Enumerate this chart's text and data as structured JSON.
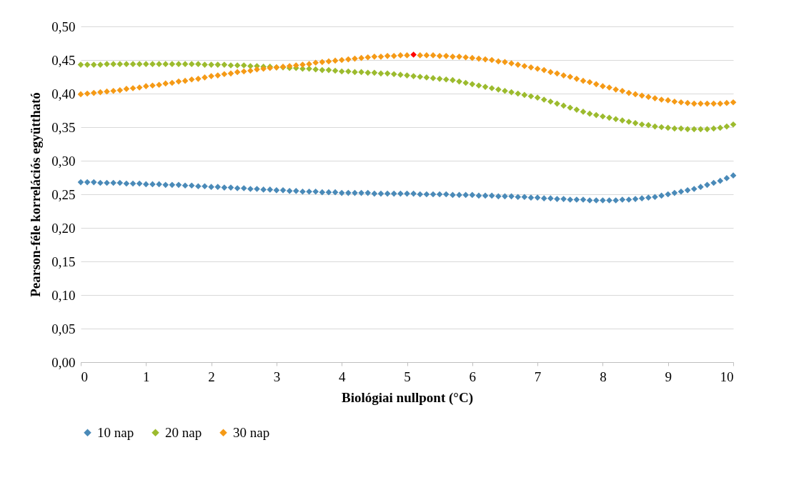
{
  "chart_data": {
    "type": "scatter",
    "xlabel": "Biológiai nullpont (°C)",
    "ylabel": "Pearson-féle korrelációs együttható",
    "marker": "diamond",
    "grid": "y",
    "legend": "bottom",
    "x": [
      0,
      0.1,
      0.2,
      0.3,
      0.4,
      0.5,
      0.6,
      0.7,
      0.8,
      0.9,
      1,
      1.1,
      1.2,
      1.3,
      1.4,
      1.5,
      1.6,
      1.7,
      1.8,
      1.9,
      2,
      2.1,
      2.2,
      2.3,
      2.4,
      2.5,
      2.6,
      2.7,
      2.8,
      2.9,
      3,
      3.1,
      3.2,
      3.3,
      3.4,
      3.5,
      3.6,
      3.7,
      3.8,
      3.9,
      4,
      4.1,
      4.2,
      4.3,
      4.4,
      4.5,
      4.6,
      4.7,
      4.8,
      4.9,
      5,
      5.1,
      5.2,
      5.3,
      5.4,
      5.5,
      5.6,
      5.7,
      5.8,
      5.9,
      6,
      6.1,
      6.2,
      6.3,
      6.4,
      6.5,
      6.6,
      6.7,
      6.8,
      6.9,
      7,
      7.1,
      7.2,
      7.3,
      7.4,
      7.5,
      7.6,
      7.7,
      7.8,
      7.9,
      8,
      8.1,
      8.2,
      8.3,
      8.4,
      8.5,
      8.6,
      8.7,
      8.8,
      8.9,
      9,
      9.1,
      9.2,
      9.3,
      9.4,
      9.5,
      9.6,
      9.7,
      9.8,
      9.9,
      10
    ],
    "xlim": [
      0,
      10
    ],
    "xticks": [
      0,
      1,
      2,
      3,
      4,
      5,
      6,
      7,
      8,
      9,
      10
    ],
    "ylim": [
      0,
      0.5
    ],
    "yticks": [
      {
        "value": 0,
        "label": "0,00"
      },
      {
        "value": 0.05,
        "label": "0,05"
      },
      {
        "value": 0.1,
        "label": "0,10"
      },
      {
        "value": 0.15,
        "label": "0,15"
      },
      {
        "value": 0.2,
        "label": "0,20"
      },
      {
        "value": 0.25,
        "label": "0,25"
      },
      {
        "value": 0.3,
        "label": "0,30"
      },
      {
        "value": 0.35,
        "label": "0,35"
      },
      {
        "value": 0.4,
        "label": "0,40"
      },
      {
        "value": 0.45,
        "label": "0,45"
      },
      {
        "value": 0.5,
        "label": "0,50"
      }
    ],
    "series": [
      {
        "name": "10 nap",
        "color": "#4a8ab8",
        "values": [
          0.268,
          0.268,
          0.268,
          0.267,
          0.267,
          0.267,
          0.267,
          0.266,
          0.266,
          0.266,
          0.265,
          0.265,
          0.265,
          0.264,
          0.264,
          0.264,
          0.263,
          0.263,
          0.262,
          0.262,
          0.261,
          0.261,
          0.26,
          0.26,
          0.259,
          0.259,
          0.258,
          0.258,
          0.257,
          0.257,
          0.256,
          0.256,
          0.255,
          0.255,
          0.254,
          0.254,
          0.254,
          0.253,
          0.253,
          0.253,
          0.252,
          0.252,
          0.252,
          0.252,
          0.252,
          0.251,
          0.251,
          0.251,
          0.251,
          0.251,
          0.251,
          0.251,
          0.25,
          0.25,
          0.25,
          0.25,
          0.25,
          0.249,
          0.249,
          0.249,
          0.249,
          0.248,
          0.248,
          0.248,
          0.247,
          0.247,
          0.247,
          0.246,
          0.246,
          0.245,
          0.245,
          0.244,
          0.244,
          0.243,
          0.243,
          0.242,
          0.242,
          0.242,
          0.241,
          0.241,
          0.241,
          0.241,
          0.241,
          0.242,
          0.242,
          0.243,
          0.244,
          0.245,
          0.246,
          0.248,
          0.25,
          0.252,
          0.254,
          0.256,
          0.258,
          0.261,
          0.264,
          0.267,
          0.27,
          0.274,
          0.278
        ]
      },
      {
        "name": "20 nap",
        "color": "#9cbb2e",
        "values": [
          0.443,
          0.443,
          0.443,
          0.443,
          0.444,
          0.444,
          0.444,
          0.444,
          0.444,
          0.444,
          0.444,
          0.444,
          0.444,
          0.444,
          0.444,
          0.444,
          0.444,
          0.444,
          0.444,
          0.443,
          0.443,
          0.443,
          0.443,
          0.442,
          0.442,
          0.442,
          0.441,
          0.441,
          0.44,
          0.44,
          0.439,
          0.439,
          0.438,
          0.438,
          0.437,
          0.437,
          0.436,
          0.435,
          0.435,
          0.434,
          0.433,
          0.433,
          0.432,
          0.432,
          0.431,
          0.431,
          0.43,
          0.43,
          0.429,
          0.428,
          0.427,
          0.426,
          0.425,
          0.424,
          0.423,
          0.422,
          0.421,
          0.42,
          0.418,
          0.416,
          0.414,
          0.412,
          0.41,
          0.408,
          0.406,
          0.404,
          0.402,
          0.4,
          0.398,
          0.396,
          0.394,
          0.391,
          0.388,
          0.385,
          0.382,
          0.379,
          0.376,
          0.373,
          0.37,
          0.368,
          0.366,
          0.364,
          0.362,
          0.36,
          0.358,
          0.356,
          0.354,
          0.353,
          0.351,
          0.35,
          0.349,
          0.348,
          0.348,
          0.347,
          0.347,
          0.347,
          0.347,
          0.348,
          0.349,
          0.351,
          0.354
        ]
      },
      {
        "name": "30 nap",
        "color": "#f59a16",
        "values": [
          0.399,
          0.4,
          0.401,
          0.402,
          0.403,
          0.404,
          0.405,
          0.407,
          0.408,
          0.409,
          0.411,
          0.412,
          0.413,
          0.415,
          0.416,
          0.418,
          0.419,
          0.421,
          0.422,
          0.424,
          0.426,
          0.427,
          0.429,
          0.43,
          0.432,
          0.433,
          0.434,
          0.436,
          0.437,
          0.438,
          0.439,
          0.44,
          0.441,
          0.442,
          0.443,
          0.444,
          0.446,
          0.447,
          0.448,
          0.449,
          0.45,
          0.451,
          0.452,
          0.453,
          0.454,
          0.455,
          0.455,
          0.456,
          0.456,
          0.457,
          0.457,
          null,
          0.457,
          0.457,
          0.457,
          0.456,
          0.456,
          0.455,
          0.455,
          0.454,
          0.453,
          0.452,
          0.451,
          0.45,
          0.448,
          0.447,
          0.445,
          0.443,
          0.441,
          0.439,
          0.437,
          0.435,
          0.432,
          0.43,
          0.427,
          0.425,
          0.422,
          0.419,
          0.417,
          0.414,
          0.411,
          0.409,
          0.406,
          0.404,
          0.401,
          0.399,
          0.397,
          0.395,
          0.393,
          0.391,
          0.39,
          0.388,
          0.387,
          0.386,
          0.385,
          0.385,
          0.385,
          0.385,
          0.385,
          0.386,
          0.387
        ]
      },
      {
        "color": "#ff0000",
        "x": [
          5.1
        ],
        "values": [
          0.458
        ]
      }
    ]
  }
}
